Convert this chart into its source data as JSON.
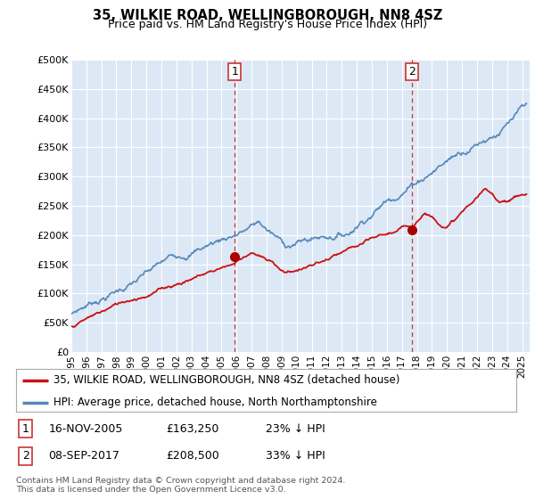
{
  "title": "35, WILKIE ROAD, WELLINGBOROUGH, NN8 4SZ",
  "subtitle": "Price paid vs. HM Land Registry's House Price Index (HPI)",
  "ylabel_ticks": [
    "£0",
    "£50K",
    "£100K",
    "£150K",
    "£200K",
    "£250K",
    "£300K",
    "£350K",
    "£400K",
    "£450K",
    "£500K"
  ],
  "ytick_values": [
    0,
    50000,
    100000,
    150000,
    200000,
    250000,
    300000,
    350000,
    400000,
    450000,
    500000
  ],
  "ylim": [
    0,
    500000
  ],
  "xlim_start": 1995.0,
  "xlim_end": 2025.5,
  "background_color": "#ffffff",
  "plot_bg_color": "#dce8f5",
  "grid_color": "#ffffff",
  "sale1": {
    "date_x": 2005.88,
    "price": 163250,
    "label": "1"
  },
  "sale2": {
    "date_x": 2017.68,
    "price": 208500,
    "label": "2"
  },
  "vline_color": "#cc3333",
  "sale_marker_color": "#aa0000",
  "hpi_line_color": "#5588bb",
  "price_line_color": "#cc1111",
  "legend_label_price": "35, WILKIE ROAD, WELLINGBOROUGH, NN8 4SZ (detached house)",
  "legend_label_hpi": "HPI: Average price, detached house, North Northamptonshire",
  "table_entries": [
    {
      "num": "1",
      "date": "16-NOV-2005",
      "price": "£163,250",
      "pct": "23% ↓ HPI"
    },
    {
      "num": "2",
      "date": "08-SEP-2017",
      "price": "£208,500",
      "pct": "33% ↓ HPI"
    }
  ],
  "footnote": "Contains HM Land Registry data © Crown copyright and database right 2024.\nThis data is licensed under the Open Government Licence v3.0.",
  "xtick_years": [
    1995,
    1996,
    1997,
    1998,
    1999,
    2000,
    2001,
    2002,
    2003,
    2004,
    2005,
    2006,
    2007,
    2008,
    2009,
    2010,
    2011,
    2012,
    2013,
    2014,
    2015,
    2016,
    2017,
    2018,
    2019,
    2020,
    2021,
    2022,
    2023,
    2024,
    2025
  ]
}
